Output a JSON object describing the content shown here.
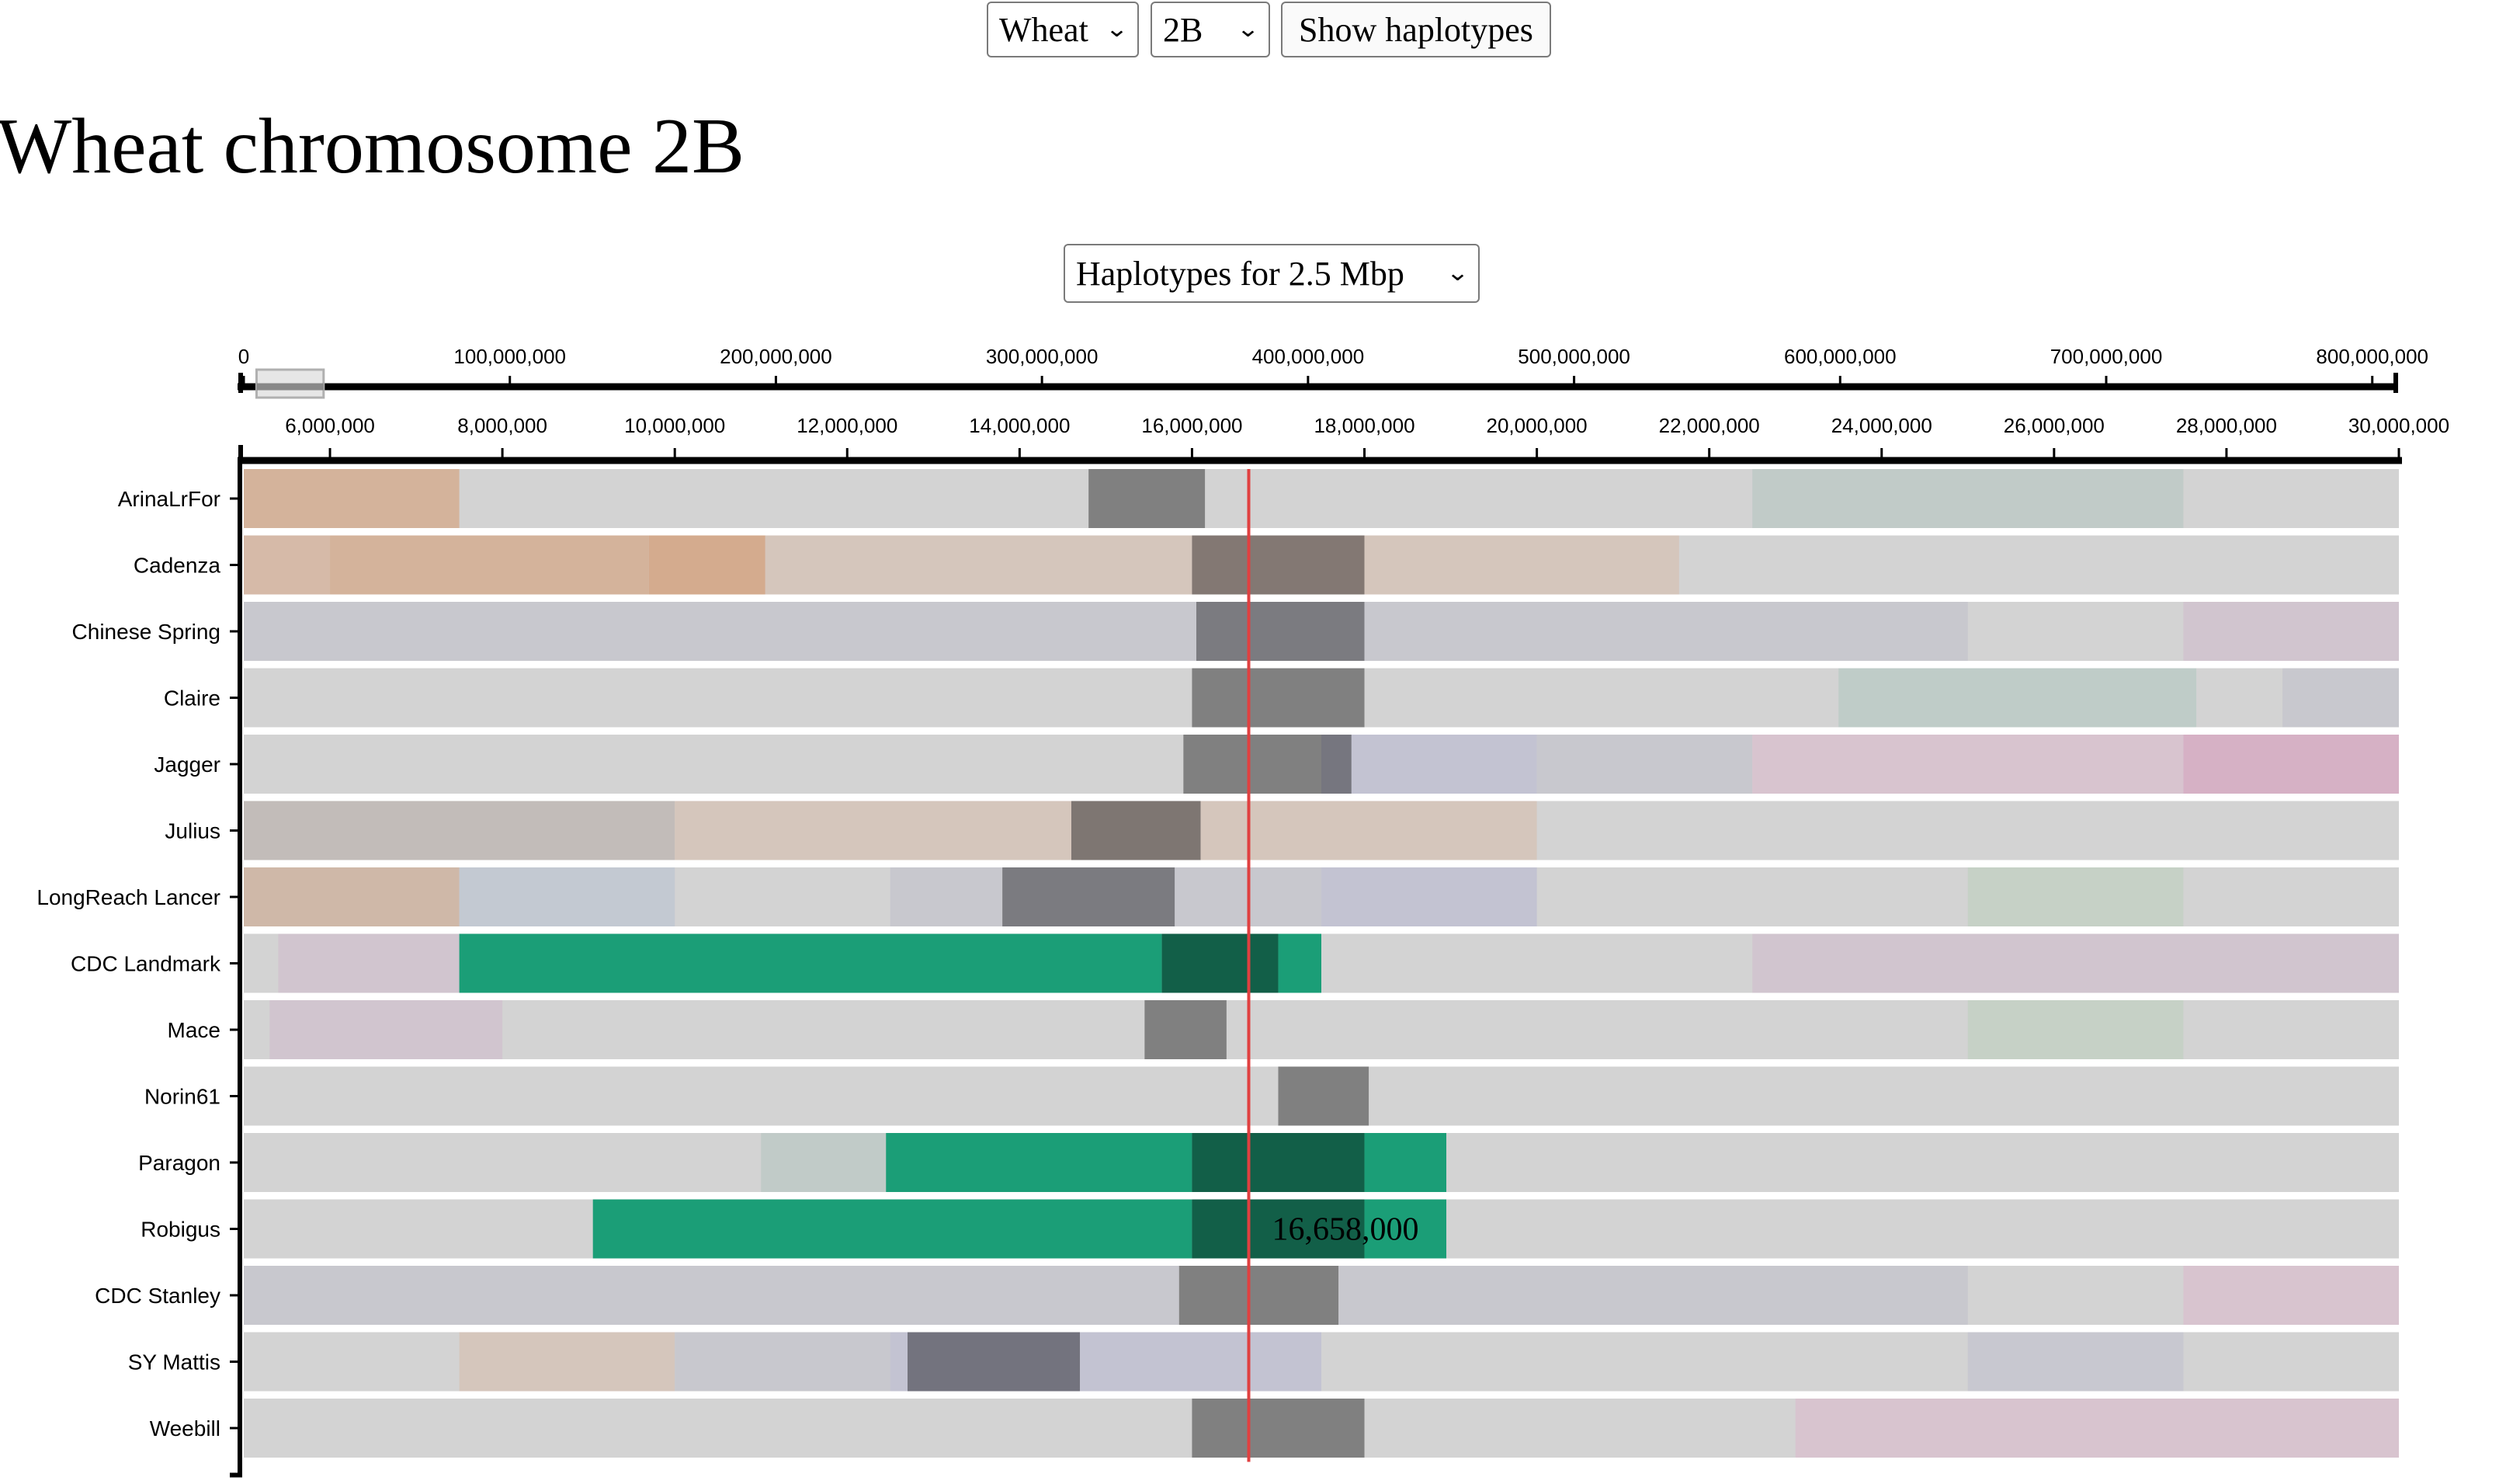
{
  "controls": {
    "species_select": "Wheat",
    "chromosome_select": "2B",
    "show_button": "Show haplotypes",
    "haplotype_select": "Haplotypes for 2.5 Mbp"
  },
  "title": "Wheat chromosome 2B",
  "overview_axis": {
    "tick_labels": [
      "0",
      "100,000,000",
      "200,000,000",
      "300,000,000",
      "400,000,000",
      "500,000,000",
      "600,000,000",
      "700,000,000",
      "800,000,000"
    ],
    "tick_values": [
      0,
      100000000,
      200000000,
      300000000,
      400000000,
      500000000,
      600000000,
      700000000,
      800000000
    ],
    "domain": [
      0,
      810000000
    ],
    "brush": [
      4800000,
      30000000
    ]
  },
  "zoom_axis": {
    "tick_labels": [
      "6,000,000",
      "8,000,000",
      "10,000,000",
      "12,000,000",
      "14,000,000",
      "16,000,000",
      "18,000,000",
      "20,000,000",
      "22,000,000",
      "24,000,000",
      "26,000,000",
      "28,000,000",
      "30,000,000"
    ],
    "tick_values": [
      6000000,
      8000000,
      10000000,
      12000000,
      14000000,
      16000000,
      18000000,
      20000000,
      22000000,
      24000000,
      26000000,
      28000000,
      30000000
    ],
    "domain": [
      5000000,
      30000000
    ]
  },
  "cursor": {
    "position": 16658000,
    "label": "16,658,000"
  },
  "colors": {
    "base": "#d3d3d3",
    "green": "#1b9e77",
    "dark_green": "#125f48",
    "gray": "#7d7d7d",
    "cursor": "#e04040"
  },
  "chart_data": {
    "type": "haplotype-blocks",
    "x_unit": "bp",
    "rows": [
      {
        "name": "ArinaLrFor",
        "blocks": [
          {
            "start": 5000000,
            "end": 7500000,
            "color": "#d4b39b"
          },
          {
            "start": 14800000,
            "end": 16150000,
            "color": "#808080"
          },
          {
            "start": 22500000,
            "end": 27500000,
            "color": "#c1cbc8"
          }
        ]
      },
      {
        "name": "Cadenza",
        "blocks": [
          {
            "start": 5000000,
            "end": 6000000,
            "color": "#d6baa8"
          },
          {
            "start": 6000000,
            "end": 9700000,
            "color": "#d4b39b"
          },
          {
            "start": 9700000,
            "end": 11050000,
            "color": "#d4ab8e"
          },
          {
            "start": 11050000,
            "end": 16000000,
            "color": "#d5c6bc"
          },
          {
            "start": 16000000,
            "end": 18000000,
            "color": "#837873"
          },
          {
            "start": 18000000,
            "end": 21650000,
            "color": "#d5c6bc"
          }
        ]
      },
      {
        "name": "Chinese Spring",
        "blocks": [
          {
            "start": 5000000,
            "end": 16050000,
            "color": "#c8c8ce"
          },
          {
            "start": 16050000,
            "end": 18000000,
            "color": "#7b7b80"
          },
          {
            "start": 18000000,
            "end": 25000000,
            "color": "#c8c8ce"
          },
          {
            "start": 27500000,
            "end": 30000000,
            "color": "#d1c5cf"
          }
        ]
      },
      {
        "name": "Claire",
        "blocks": [
          {
            "start": 16000000,
            "end": 18000000,
            "color": "#808080"
          },
          {
            "start": 23500000,
            "end": 27650000,
            "color": "#bfccc8"
          },
          {
            "start": 28650000,
            "end": 30000000,
            "color": "#c8c8ce"
          }
        ]
      },
      {
        "name": "Jagger",
        "blocks": [
          {
            "start": 15900000,
            "end": 17500000,
            "color": "#808080"
          },
          {
            "start": 17500000,
            "end": 17850000,
            "color": "#76767f"
          },
          {
            "start": 17850000,
            "end": 20000000,
            "color": "#c3c3d2"
          },
          {
            "start": 20000000,
            "end": 22500000,
            "color": "#c8c8ce"
          },
          {
            "start": 22500000,
            "end": 27500000,
            "color": "#d8c4cf"
          },
          {
            "start": 27500000,
            "end": 30000000,
            "color": "#d6b1c5"
          }
        ]
      },
      {
        "name": "Julius",
        "blocks": [
          {
            "start": 5000000,
            "end": 10000000,
            "color": "#c2bcb9"
          },
          {
            "start": 10000000,
            "end": 14600000,
            "color": "#d5c6bc"
          },
          {
            "start": 14600000,
            "end": 16100000,
            "color": "#7e7672"
          },
          {
            "start": 16100000,
            "end": 20000000,
            "color": "#d5c6bc"
          }
        ]
      },
      {
        "name": "LongReach Lancer",
        "blocks": [
          {
            "start": 5000000,
            "end": 7500000,
            "color": "#cfb8a8"
          },
          {
            "start": 7500000,
            "end": 10000000,
            "color": "#c3c9d2"
          },
          {
            "start": 12500000,
            "end": 13800000,
            "color": "#c8c8ce"
          },
          {
            "start": 13800000,
            "end": 15800000,
            "color": "#7b7b80"
          },
          {
            "start": 15800000,
            "end": 17500000,
            "color": "#c8c8ce"
          },
          {
            "start": 17500000,
            "end": 20000000,
            "color": "#c3c3d2"
          },
          {
            "start": 25000000,
            "end": 27500000,
            "color": "#c6d1c6"
          }
        ]
      },
      {
        "name": "CDC Landmark",
        "blocks": [
          {
            "start": 5400000,
            "end": 7500000,
            "color": "#d1c5cf"
          },
          {
            "start": 7500000,
            "end": 15650000,
            "color": "#1b9e77"
          },
          {
            "start": 15650000,
            "end": 17000000,
            "color": "#125f48"
          },
          {
            "start": 17000000,
            "end": 17500000,
            "color": "#1b9e77"
          },
          {
            "start": 22500000,
            "end": 30000000,
            "color": "#d1c5cf"
          }
        ]
      },
      {
        "name": "Mace",
        "blocks": [
          {
            "start": 5300000,
            "end": 8000000,
            "color": "#d1c5cf"
          },
          {
            "start": 15450000,
            "end": 16400000,
            "color": "#808080"
          },
          {
            "start": 25000000,
            "end": 27500000,
            "color": "#c6d1c6"
          }
        ]
      },
      {
        "name": "Norin61",
        "blocks": [
          {
            "start": 17000000,
            "end": 18050000,
            "color": "#808080"
          }
        ]
      },
      {
        "name": "Paragon",
        "blocks": [
          {
            "start": 11000000,
            "end": 12450000,
            "color": "#c1cbc8"
          },
          {
            "start": 12450000,
            "end": 16000000,
            "color": "#1b9e77"
          },
          {
            "start": 16000000,
            "end": 18000000,
            "color": "#125f48"
          },
          {
            "start": 18000000,
            "end": 18950000,
            "color": "#1b9e77"
          }
        ]
      },
      {
        "name": "Robigus",
        "blocks": [
          {
            "start": 9050000,
            "end": 16000000,
            "color": "#1b9e77"
          },
          {
            "start": 16000000,
            "end": 18000000,
            "color": "#125f48"
          },
          {
            "start": 18000000,
            "end": 18950000,
            "color": "#1b9e77"
          }
        ]
      },
      {
        "name": "CDC Stanley",
        "blocks": [
          {
            "start": 5000000,
            "end": 15850000,
            "color": "#c8c8ce"
          },
          {
            "start": 15850000,
            "end": 17700000,
            "color": "#808080"
          },
          {
            "start": 17700000,
            "end": 25000000,
            "color": "#c8c8ce"
          },
          {
            "start": 27500000,
            "end": 30000000,
            "color": "#d8c4cf"
          }
        ]
      },
      {
        "name": "SY Mattis",
        "blocks": [
          {
            "start": 7500000,
            "end": 10000000,
            "color": "#d5c6bc"
          },
          {
            "start": 10000000,
            "end": 12500000,
            "color": "#c8c8ce"
          },
          {
            "start": 12500000,
            "end": 12700000,
            "color": "#c3c3d2"
          },
          {
            "start": 12700000,
            "end": 14700000,
            "color": "#73737e"
          },
          {
            "start": 14700000,
            "end": 17500000,
            "color": "#c3c3d2"
          },
          {
            "start": 25000000,
            "end": 27500000,
            "color": "#c8c8d0"
          }
        ]
      },
      {
        "name": "Weebill",
        "blocks": [
          {
            "start": 16000000,
            "end": 18000000,
            "color": "#808080"
          },
          {
            "start": 23000000,
            "end": 30000000,
            "color": "#d8c4cf"
          }
        ]
      }
    ]
  }
}
